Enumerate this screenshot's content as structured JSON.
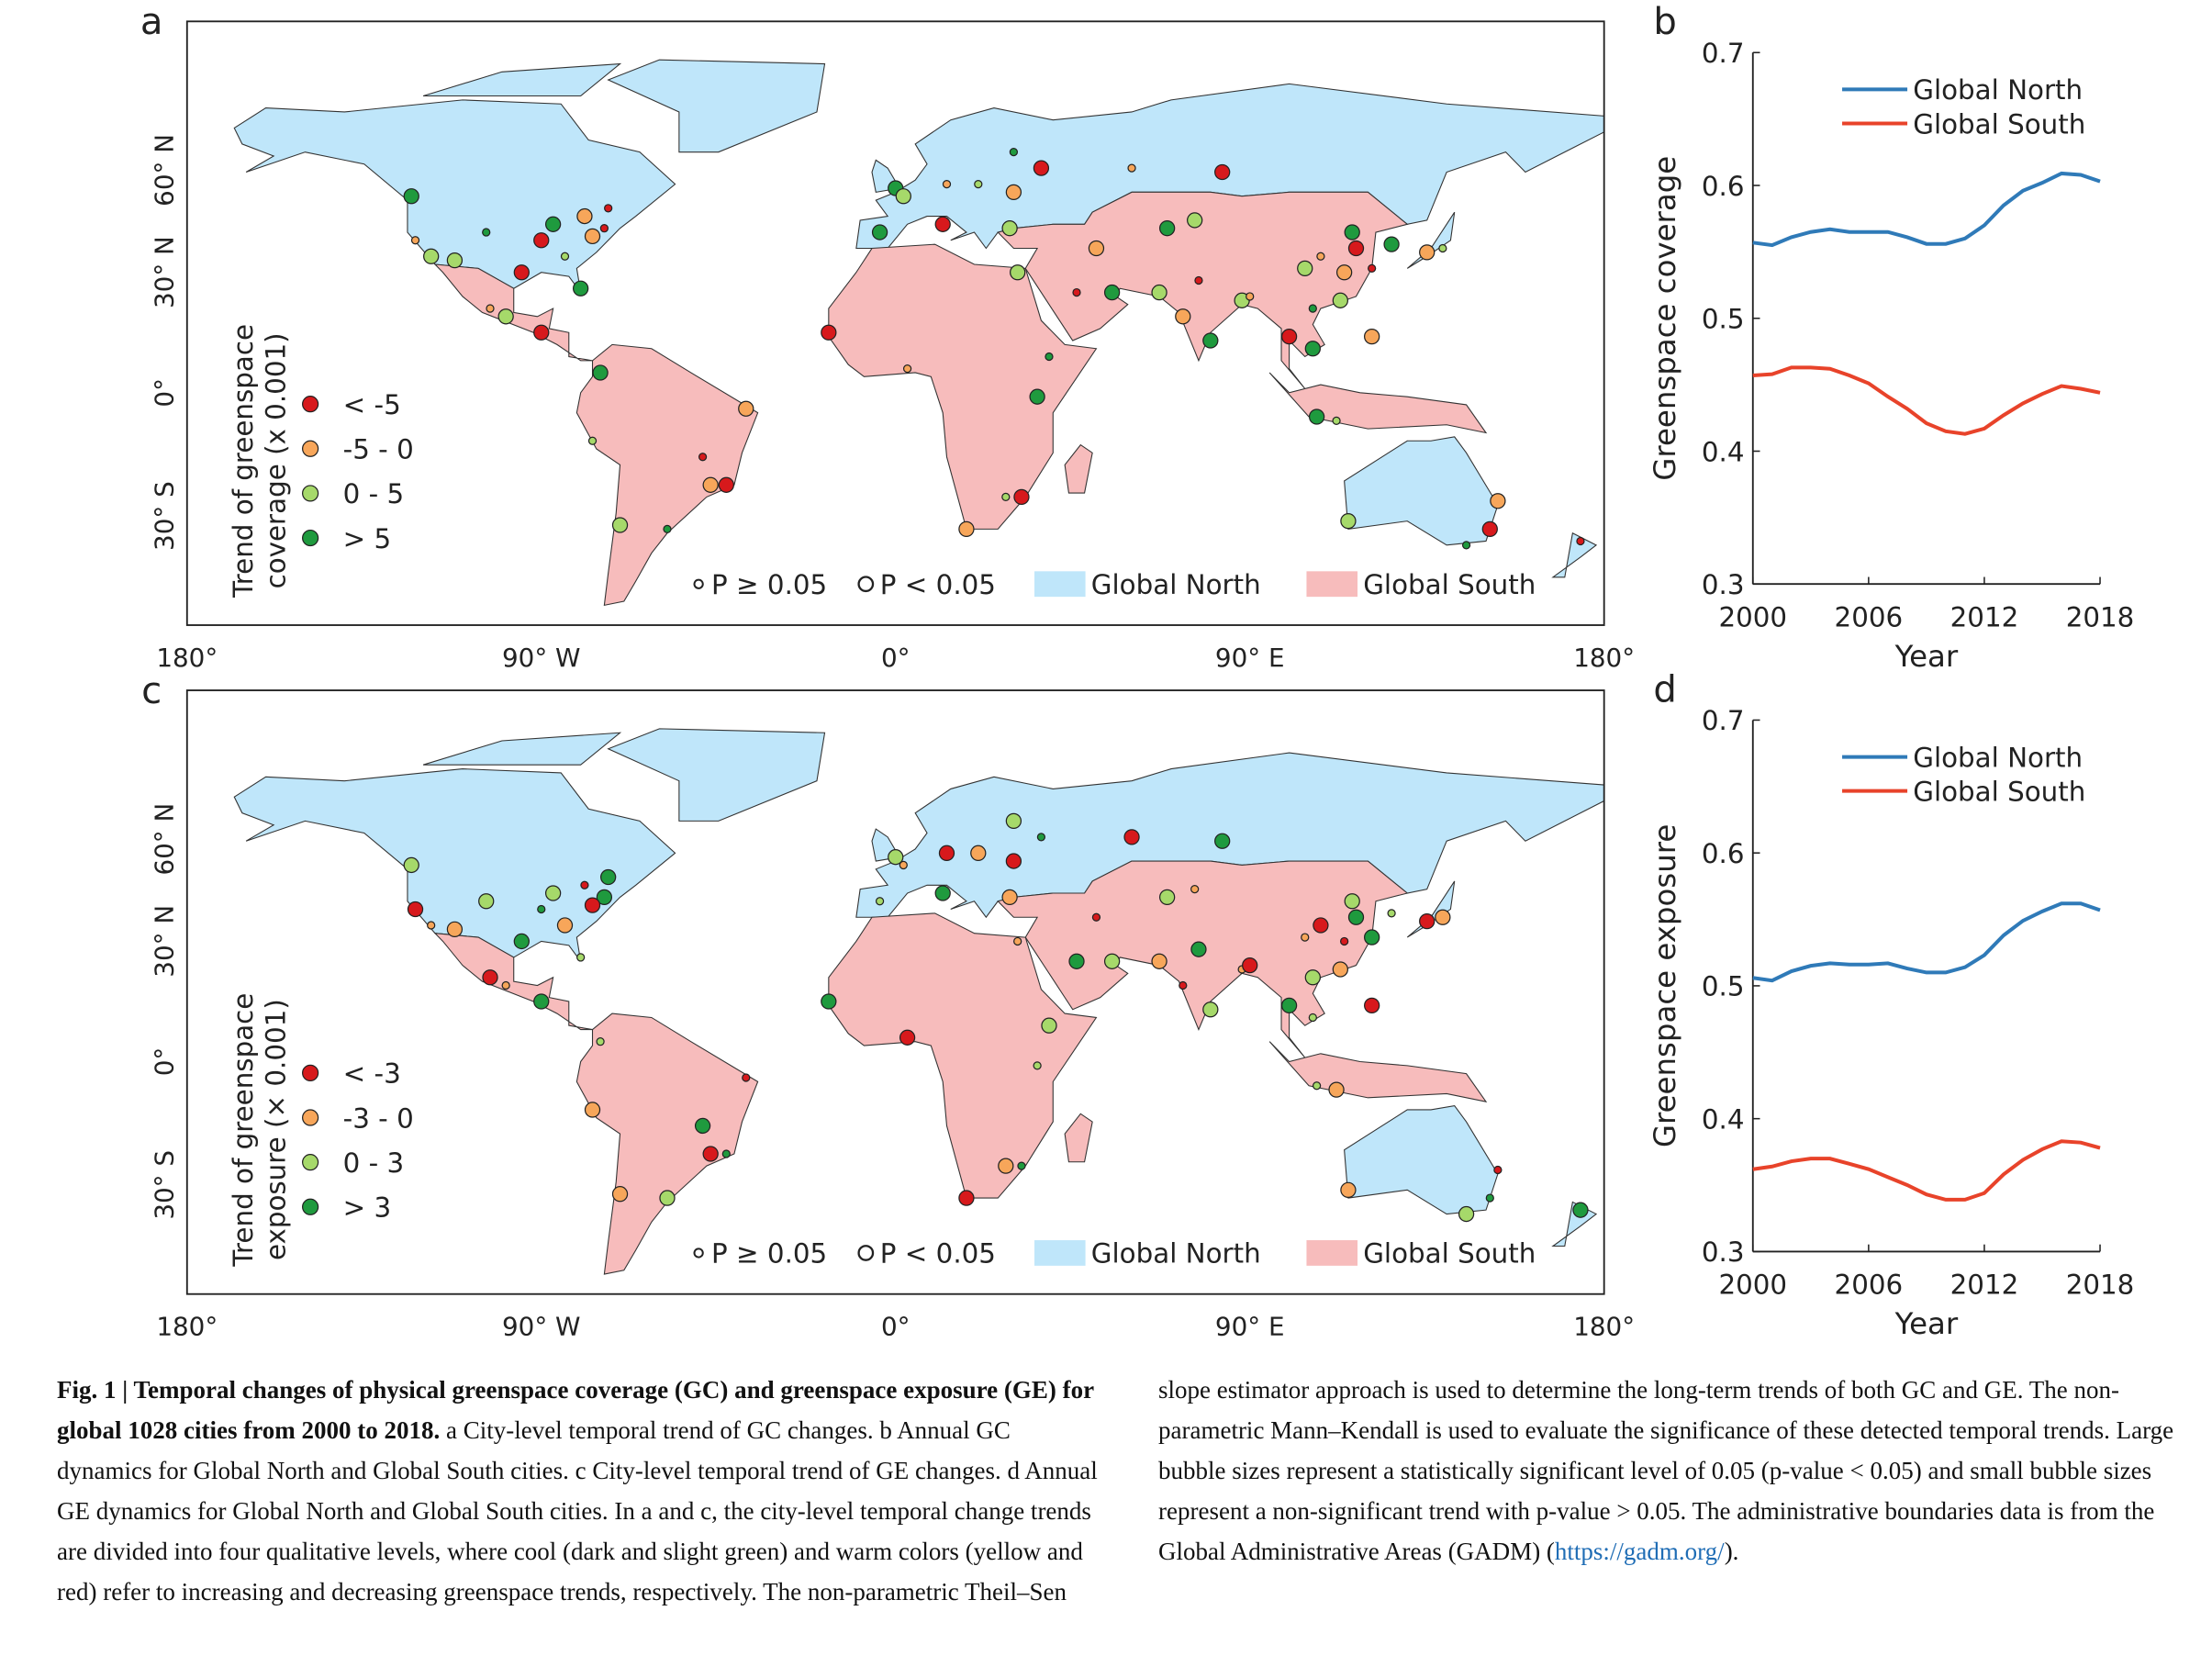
{
  "maps": [
    {
      "panel_label": "a",
      "legend_title": [
        "Trend of greenspace",
        "coverage (x 0.001)"
      ],
      "legend_items": [
        {
          "label": "< -5",
          "color": "#d7191c"
        },
        {
          "label": "-5 - 0",
          "color": "#f7a65a"
        },
        {
          "label": "0 - 5",
          "color": "#a6d96a"
        },
        {
          "label": "> 5",
          "color": "#1f9a3e"
        }
      ],
      "significance": [
        "P ≥ 0.05",
        "P < 0.05"
      ],
      "regions": [
        {
          "name": "Global North",
          "color": "#bfe6fa"
        },
        {
          "name": "Global South",
          "color": "#f7bcbc"
        }
      ],
      "x_labels": [
        "180°",
        "90° W",
        "0°",
        "90° E",
        "180°"
      ],
      "y_labels": [
        "60° N",
        "30° N",
        "0°",
        "30° S"
      ]
    },
    {
      "panel_label": "c",
      "legend_title": [
        "Trend of greenspace",
        "exposure (× 0.001)"
      ],
      "legend_items": [
        {
          "label": "< -3",
          "color": "#d7191c"
        },
        {
          "label": "-3 - 0",
          "color": "#f7a65a"
        },
        {
          "label": "0 - 3",
          "color": "#a6d96a"
        },
        {
          "label": "> 3",
          "color": "#1f9a3e"
        }
      ],
      "significance": [
        "P ≥ 0.05",
        "P < 0.05"
      ],
      "regions": [
        {
          "name": "Global North",
          "color": "#bfe6fa"
        },
        {
          "name": "Global South",
          "color": "#f7bcbc"
        }
      ],
      "x_labels": [
        "180°",
        "90° W",
        "0°",
        "90° E",
        "180°"
      ],
      "y_labels": [
        "60° N",
        "30° N",
        "0°",
        "30° S"
      ]
    }
  ],
  "chart_data": [
    {
      "type": "line",
      "panel_label": "b",
      "ylabel": "Greenspace coverage",
      "xlabel": "Year",
      "x": [
        2000,
        2001,
        2002,
        2003,
        2004,
        2005,
        2006,
        2007,
        2008,
        2009,
        2010,
        2011,
        2012,
        2013,
        2014,
        2015,
        2016,
        2017,
        2018
      ],
      "series": [
        {
          "name": "Global North",
          "color": "#2f7ab8",
          "values": [
            0.557,
            0.555,
            0.561,
            0.565,
            0.567,
            0.565,
            0.565,
            0.565,
            0.561,
            0.556,
            0.556,
            0.56,
            0.57,
            0.585,
            0.596,
            0.602,
            0.609,
            0.608,
            0.603
          ]
        },
        {
          "name": "Global South",
          "color": "#e8432a",
          "values": [
            0.457,
            0.458,
            0.463,
            0.463,
            0.462,
            0.457,
            0.451,
            0.441,
            0.432,
            0.421,
            0.415,
            0.413,
            0.417,
            0.427,
            0.436,
            0.443,
            0.449,
            0.447,
            0.444
          ]
        }
      ],
      "xlim": [
        2000,
        2018
      ],
      "xticks": [
        2000,
        2006,
        2012,
        2018
      ],
      "ylim": [
        0.3,
        0.7
      ],
      "yticks": [
        0.3,
        0.4,
        0.5,
        0.6,
        0.7
      ],
      "legend": "upper right"
    },
    {
      "type": "line",
      "panel_label": "d",
      "ylabel": "Greenspace exposure",
      "xlabel": "Year",
      "x": [
        2000,
        2001,
        2002,
        2003,
        2004,
        2005,
        2006,
        2007,
        2008,
        2009,
        2010,
        2011,
        2012,
        2013,
        2014,
        2015,
        2016,
        2017,
        2018
      ],
      "series": [
        {
          "name": "Global North",
          "color": "#2f7ab8",
          "values": [
            0.506,
            0.504,
            0.511,
            0.515,
            0.517,
            0.516,
            0.516,
            0.517,
            0.513,
            0.51,
            0.51,
            0.514,
            0.523,
            0.538,
            0.549,
            0.556,
            0.562,
            0.562,
            0.557
          ]
        },
        {
          "name": "Global South",
          "color": "#e8432a",
          "values": [
            0.362,
            0.364,
            0.368,
            0.37,
            0.37,
            0.366,
            0.362,
            0.356,
            0.35,
            0.343,
            0.339,
            0.339,
            0.344,
            0.358,
            0.369,
            0.377,
            0.383,
            0.382,
            0.378
          ]
        }
      ],
      "xlim": [
        2000,
        2018
      ],
      "xticks": [
        2000,
        2006,
        2012,
        2018
      ],
      "ylim": [
        0.3,
        0.7
      ],
      "yticks": [
        0.3,
        0.4,
        0.5,
        0.6,
        0.7
      ],
      "legend": "upper right"
    }
  ],
  "caption": {
    "title": "Fig. 1 | Temporal changes of physical greenspace coverage (GC) and greenspace exposure (GE) for global 1028 cities from 2000 to 2018.",
    "text": "a City-level temporal trend of GC changes. b Annual GC dynamics for Global North and Global South cities. c City-level temporal trend of GE changes. d Annual GE dynamics for Global North and Global South cities. In a and c, the city-level temporal change trends are divided into four qualitative levels, where cool (dark and slight green) and warm colors (yellow and red) refer to increasing and decreasing greenspace trends, respectively. The non-parametric Theil–Sen slope estimator approach is used to determine the long-term trends of both GC and GE. The non-parametric Mann–Kendall is used to evaluate the significance of these detected temporal trends. Large bubble sizes represent a statistically significant level of 0.05 (p-value < 0.05) and small bubble sizes represent a non-significant trend with p-value > 0.05. The administrative boundaries data is from the Global Administrative Areas (GADM) (",
    "link": "https://gadm.org/",
    "end": ")."
  }
}
